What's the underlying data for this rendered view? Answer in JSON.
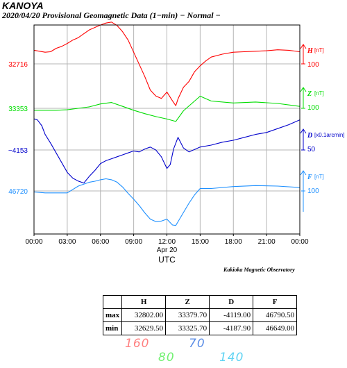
{
  "header": {
    "station": "KANOYA",
    "subtitle": "2020/04/20  Provisional Geomagnetic Data (1−min)  − Normal −"
  },
  "chart_data": {
    "type": "line",
    "xaxis": {
      "ticks": [
        "00:00",
        "03:00",
        "06:00",
        "09:00",
        "12:00",
        "15:00",
        "18:00",
        "21:00",
        "00:00"
      ],
      "date_label": "Apr 20",
      "label": "UTC",
      "range_hours": [
        0,
        24
      ]
    },
    "grid": true,
    "series": [
      {
        "name": "H",
        "unit": "[nT]",
        "color": "#ff0000",
        "ref_value": "32716",
        "scale_label": "100",
        "scale_value": 100,
        "max": "32802.00",
        "min": "32629.50",
        "x": [
          0,
          0.5,
          1,
          1.5,
          2,
          2.5,
          3,
          3.5,
          4,
          4.5,
          5,
          5.5,
          6,
          6.5,
          7,
          7.5,
          8,
          8.5,
          9,
          9.5,
          10,
          10.5,
          11,
          11.5,
          12,
          12.5,
          12.8,
          13,
          13.5,
          14,
          14.5,
          15,
          15.5,
          16,
          17,
          18,
          19,
          20,
          21,
          22,
          23,
          24
        ],
        "y": [
          32744,
          32742,
          32740,
          32741,
          32748,
          32752,
          32758,
          32765,
          32770,
          32778,
          32786,
          32791,
          32796,
          32800,
          32802,
          32795,
          32782,
          32765,
          32740,
          32715,
          32690,
          32662,
          32650,
          32645,
          32658,
          32640,
          32630,
          32644,
          32668,
          32680,
          32700,
          32712,
          32722,
          32730,
          32736,
          32740,
          32741,
          32742,
          32743,
          32745,
          32744,
          32741
        ]
      },
      {
        "name": "Z",
        "unit": "[nT]",
        "color": "#00dd00",
        "ref_value": "33353",
        "scale_label": "100",
        "scale_value": 100,
        "max": "33379.70",
        "min": "33325.70",
        "x": [
          0,
          1,
          2,
          3,
          4,
          5,
          6,
          7,
          8,
          9,
          10,
          11,
          12,
          12.8,
          13.5,
          14,
          15,
          16,
          18,
          20,
          22,
          24
        ],
        "y": [
          33349,
          33349,
          33349,
          33350,
          33353,
          33356,
          33362,
          33365,
          33357,
          33349,
          33342,
          33336,
          33331,
          33326,
          33348,
          33358,
          33378,
          33368,
          33364,
          33366,
          33363,
          33357
        ]
      },
      {
        "name": "D",
        "unit": "[x0.1arcmin]",
        "color": "#0000cc",
        "ref_value": "−4153",
        "scale_label": "50",
        "scale_value": 50,
        "max": "−4119.00",
        "min": "−4187.90",
        "x": [
          0,
          0.3,
          0.7,
          1,
          1.5,
          2,
          2.5,
          3,
          3.5,
          4,
          4.5,
          5,
          5.5,
          6,
          6.5,
          7,
          7.5,
          8,
          8.5,
          9,
          9.5,
          10,
          10.5,
          11,
          11.5,
          12,
          12.3,
          12.6,
          13,
          13.5,
          14,
          15,
          16,
          17,
          18,
          19,
          20,
          21,
          22,
          23,
          24
        ],
        "y": [
          -4121,
          -4122,
          -4128,
          -4137,
          -4146,
          -4156,
          -4166,
          -4176,
          -4182,
          -4185,
          -4187,
          -4180,
          -4174,
          -4167,
          -4164,
          -4162,
          -4160,
          -4158,
          -4156,
          -4154,
          -4155,
          -4152,
          -4150,
          -4153,
          -4160,
          -4172,
          -4168,
          -4152,
          -4140,
          -4151,
          -4155,
          -4150,
          -4148,
          -4145,
          -4143,
          -4140,
          -4137,
          -4135,
          -4131,
          -4127,
          -4122
        ]
      },
      {
        "name": "F",
        "unit": "[nT]",
        "color": "#1e90ff",
        "ref_value": "46720",
        "scale_label": "100",
        "scale_value": 100,
        "max": "46790.50",
        "min": "46649.00",
        "x": [
          0,
          1,
          2,
          3,
          4,
          5,
          5.5,
          6,
          6.5,
          7,
          7.5,
          8,
          8.5,
          9,
          9.5,
          10,
          10.5,
          11,
          11.5,
          12,
          12.5,
          12.8,
          13.3,
          14,
          14.5,
          15,
          16,
          18,
          20,
          22,
          24
        ],
        "y": [
          46718,
          46716,
          46716,
          46716,
          46730,
          46738,
          46740,
          46743,
          46745,
          46743,
          46738,
          46728,
          46715,
          46703,
          46690,
          46675,
          46662,
          46657,
          46658,
          46662,
          46650,
          46649,
          46668,
          46695,
          46712,
          46725,
          46725,
          46729,
          46731,
          46730,
          46727
        ]
      }
    ]
  },
  "observatory": "Kakioka Magnetic Observatory",
  "stats_table": {
    "headers": [
      "",
      "H",
      "Z",
      "D",
      "F"
    ],
    "rows": [
      {
        "label": "max",
        "H": "32802.00",
        "Z": "33379.70",
        "D": "-4119.00",
        "F": "46790.50"
      },
      {
        "label": "min",
        "H": "32629.50",
        "Z": "33325.70",
        "D": "-4187.90",
        "F": "46649.00"
      }
    ]
  },
  "scale_legend": [
    {
      "value": "160",
      "color": "#ff8080"
    },
    {
      "value": "80",
      "color": "#70f070"
    },
    {
      "value": "70",
      "color": "#5b8de6"
    },
    {
      "value": "140",
      "color": "#5fd3f3"
    }
  ]
}
